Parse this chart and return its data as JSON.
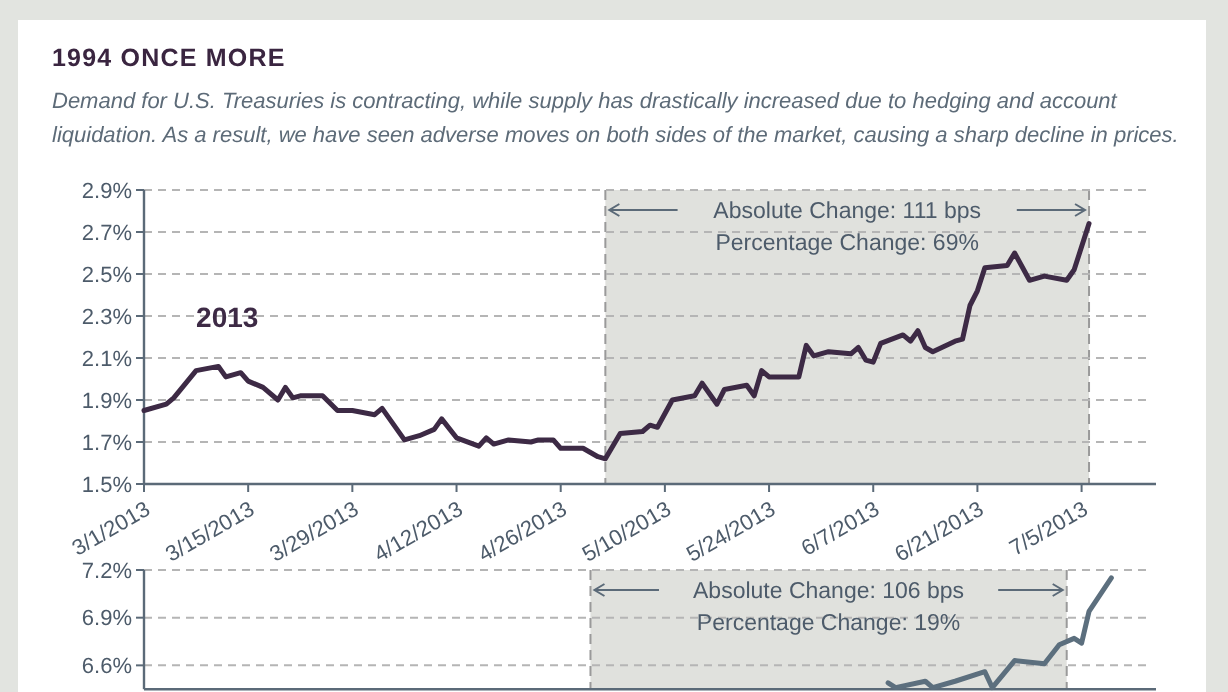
{
  "chart_data": [
    {
      "type": "line",
      "title": "1994 ONCE MORE",
      "subtitle": "Demand for U.S. Treasuries is contracting, while supply has drastically increased due to hedging and account liquidation. As a result, we have seen adverse moves on both sides of the market, causing a sharp decline in prices.",
      "series": [
        {
          "name": "2013",
          "color": "#3d2a45",
          "x": [
            "2013-03-01",
            "2013-03-04",
            "2013-03-05",
            "2013-03-08",
            "2013-03-11",
            "2013-03-12",
            "2013-03-14",
            "2013-03-15",
            "2013-03-17",
            "2013-03-19",
            "2013-03-20",
            "2013-03-21",
            "2013-03-22",
            "2013-03-25",
            "2013-03-27",
            "2013-03-29",
            "2013-04-01",
            "2013-04-02",
            "2013-04-05",
            "2013-04-07",
            "2013-04-09",
            "2013-04-10",
            "2013-04-12",
            "2013-04-15",
            "2013-04-16",
            "2013-04-17",
            "2013-04-19",
            "2013-04-22",
            "2013-04-23",
            "2013-04-25",
            "2013-04-26",
            "2013-04-29",
            "2013-05-01",
            "2013-05-02",
            "2013-05-04",
            "2013-05-07",
            "2013-05-08",
            "2013-05-09",
            "2013-05-11",
            "2013-05-14",
            "2013-05-15",
            "2013-05-17",
            "2013-05-18",
            "2013-05-21",
            "2013-05-22",
            "2013-05-23",
            "2013-05-24",
            "2013-05-28",
            "2013-05-29",
            "2013-05-30",
            "2013-06-01",
            "2013-06-04",
            "2013-06-05",
            "2013-06-06",
            "2013-06-07",
            "2013-06-08",
            "2013-06-11",
            "2013-06-12",
            "2013-06-13",
            "2013-06-14",
            "2013-06-15",
            "2013-06-18",
            "2013-06-19",
            "2013-06-20",
            "2013-06-21",
            "2013-06-22",
            "2013-06-25",
            "2013-06-26",
            "2013-06-28",
            "2013-06-30",
            "2013-07-03",
            "2013-07-04",
            "2013-07-06"
          ],
          "values": [
            1.85,
            1.88,
            1.91,
            2.04,
            2.06,
            2.01,
            2.03,
            1.99,
            1.96,
            1.9,
            1.96,
            1.91,
            1.92,
            1.92,
            1.85,
            1.85,
            1.83,
            1.86,
            1.71,
            1.73,
            1.76,
            1.81,
            1.72,
            1.68,
            1.72,
            1.69,
            1.71,
            1.7,
            1.71,
            1.71,
            1.67,
            1.67,
            1.63,
            1.62,
            1.74,
            1.75,
            1.78,
            1.77,
            1.9,
            1.92,
            1.98,
            1.88,
            1.95,
            1.97,
            1.92,
            2.04,
            2.01,
            2.01,
            2.16,
            2.11,
            2.13,
            2.12,
            2.15,
            2.09,
            2.08,
            2.17,
            2.21,
            2.18,
            2.23,
            2.15,
            2.13,
            2.18,
            2.19,
            2.35,
            2.42,
            2.53,
            2.54,
            2.6,
            2.47,
            2.49,
            2.47,
            2.52,
            2.74
          ]
        }
      ],
      "xlim": [
        "2013-03-01",
        "2013-07-15"
      ],
      "xticks": [
        {
          "value": "2013-03-01",
          "label": "3/1/2013"
        },
        {
          "value": "2013-03-15",
          "label": "3/15/2013"
        },
        {
          "value": "2013-03-29",
          "label": "3/29/2013"
        },
        {
          "value": "2013-04-12",
          "label": "4/12/2013"
        },
        {
          "value": "2013-04-26",
          "label": "4/26/2013"
        },
        {
          "value": "2013-05-10",
          "label": "5/10/2013"
        },
        {
          "value": "2013-05-24",
          "label": "5/24/2013"
        },
        {
          "value": "2013-06-07",
          "label": "6/7/2013"
        },
        {
          "value": "2013-06-21",
          "label": "6/21/2013"
        },
        {
          "value": "2013-07-05",
          "label": "7/5/2013"
        }
      ],
      "ylim": [
        1.5,
        2.9
      ],
      "yticks": [
        {
          "value": 1.5,
          "label": "1.5%"
        },
        {
          "value": 1.7,
          "label": "1.7%"
        },
        {
          "value": 1.9,
          "label": "1.9%"
        },
        {
          "value": 2.1,
          "label": "2.1%"
        },
        {
          "value": 2.3,
          "label": "2.3%"
        },
        {
          "value": 2.5,
          "label": "2.5%"
        },
        {
          "value": 2.7,
          "label": "2.7%"
        },
        {
          "value": 2.9,
          "label": "2.9%"
        }
      ],
      "grid": "y",
      "bands": [
        {
          "axis": "x",
          "from": "2013-05-02",
          "to": "2013-07-06",
          "color": "#e0e1dd"
        }
      ],
      "ref_lines": [
        {
          "axis": "x",
          "value": "2013-05-02",
          "color": "#9a9a9a",
          "line_style": "dashed"
        },
        {
          "axis": "x",
          "value": "2013-07-06",
          "color": "#9a9a9a",
          "line_style": "dashed"
        }
      ],
      "annotations": [
        "Absolute Change: 111 bps",
        "Percentage Change: 69%"
      ]
    },
    {
      "type": "line",
      "series": [
        {
          "color": "#5c6f7e",
          "x": [
            "2013-06-09",
            "2013-06-10",
            "2013-06-14",
            "2013-06-15",
            "2013-06-18",
            "2013-06-22",
            "2013-06-23",
            "2013-06-26",
            "2013-06-30",
            "2013-07-02",
            "2013-07-04",
            "2013-07-05",
            "2013-07-06",
            "2013-07-09"
          ],
          "values": [
            6.49,
            6.46,
            6.5,
            6.46,
            6.5,
            6.56,
            6.46,
            6.63,
            6.61,
            6.73,
            6.77,
            6.74,
            6.94,
            7.15
          ]
        }
      ],
      "xlim": [
        "2013-03-01",
        "2013-07-15"
      ],
      "ylim": [
        6.45,
        7.2
      ],
      "yticks": [
        {
          "value": 6.6,
          "label": "6.6%"
        },
        {
          "value": 6.9,
          "label": "6.9%"
        },
        {
          "value": 7.2,
          "label": "7.2%"
        }
      ],
      "tick_labels": "y",
      "grid": "y",
      "bands": [
        {
          "axis": "x",
          "from": "2013-04-30",
          "to": "2013-07-03",
          "color": "#e0e1dd"
        }
      ],
      "ref_lines": [
        {
          "axis": "x",
          "value": "2013-04-30",
          "color": "#9a9a9a",
          "line_style": "dashed"
        },
        {
          "axis": "x",
          "value": "2013-07-03",
          "color": "#9a9a9a",
          "line_style": "dashed"
        }
      ],
      "annotations": [
        "Absolute Change: 106 bps",
        "Percentage Change: 19%"
      ]
    }
  ]
}
